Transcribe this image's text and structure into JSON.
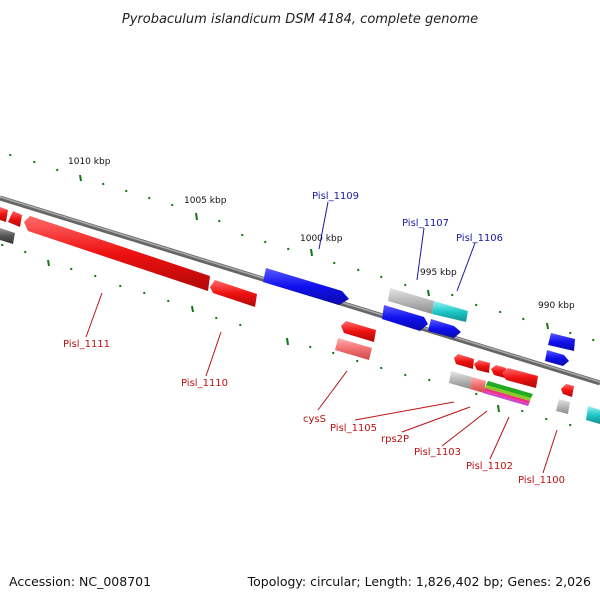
{
  "title": "Pyrobaculum islandicum DSM 4184, complete genome",
  "footer": {
    "accession": "Accession: NC_008701",
    "summary": "Topology: circular; Length: 1,826,402 bp; Genes: 2,026"
  },
  "scale_labels": [
    "1010 kbp",
    "1005 kbp",
    "1000 kbp",
    "995 kbp",
    "990 kbp"
  ],
  "genes_top": [
    "Pisl_1109",
    "Pisl_1107",
    "Pisl_1106"
  ],
  "genes_bottom": [
    "Pisl_1111",
    "Pisl_1110",
    "cysS",
    "Pisl_1105",
    "rps2P",
    "Pisl_1103",
    "Pisl_1102",
    "Pisl_1100"
  ],
  "colors": {
    "forward": "#1010ee",
    "reverse": "#ee1111",
    "reverse_light": "#f07070",
    "cyan": "#20c8c8",
    "gray": "#b8b8b8",
    "dark_gray": "#555555",
    "green_tick": "#117711",
    "backbone": "#777777"
  }
}
